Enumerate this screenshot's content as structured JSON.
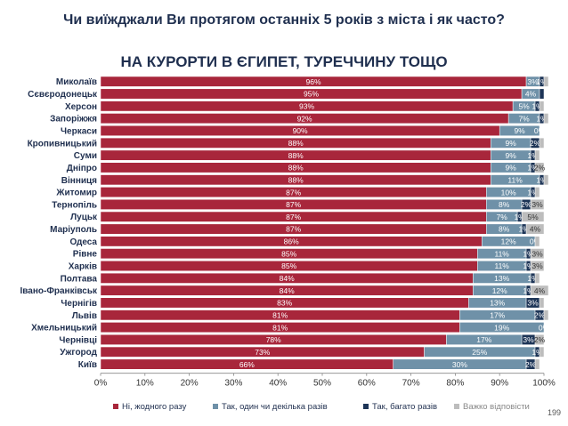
{
  "title": "Чи виїжджали Ви протягом останніх 5 років з міста і як часто?",
  "subtitle": "НА КУРОРТИ В ЄГИПЕТ, ТУРЕЧЧИНУ ТОЩО",
  "page_number": "199",
  "colors": {
    "no": "#a8263b",
    "once": "#6f91a8",
    "many": "#1d3557",
    "hard": "#bdbdbd",
    "title": "#1f2f4f"
  },
  "chart_data": {
    "type": "bar",
    "orientation": "horizontal",
    "stacked": true,
    "categories": [
      "Миколаїв",
      "Сєвєродонецьк",
      "Херсон",
      "Запоріжжя",
      "Черкаси",
      "Кропивницький",
      "Суми",
      "Дніпро",
      "Вінниця",
      "Житомир",
      "Тернопіль",
      "Луцьк",
      "Маріуполь",
      "Одеса",
      "Рівне",
      "Харків",
      "Полтава",
      "Івано-Франківськ",
      "Чернігів",
      "Львів",
      "Хмельницький",
      "Чернівці",
      "Ужгород",
      "Київ"
    ],
    "series": [
      {
        "name": "Ні, жодного разу",
        "color_key": "no",
        "values": [
          96,
          95,
          93,
          92,
          90,
          88,
          88,
          88,
          88,
          87,
          87,
          87,
          87,
          86,
          85,
          85,
          84,
          84,
          83,
          81,
          81,
          78,
          73,
          66
        ]
      },
      {
        "name": "Так, один чи декілька разів",
        "color_key": "once",
        "values": [
          3,
          4,
          5,
          7,
          9,
          9,
          9,
          9,
          11,
          10,
          8,
          7,
          8,
          12,
          11,
          11,
          13,
          12,
          13,
          17,
          19,
          17,
          25,
          30
        ]
      },
      {
        "name": "Так, багато разів",
        "color_key": "many",
        "values": [
          1,
          1,
          1,
          1,
          0,
          2,
          1,
          1,
          1,
          1,
          2,
          1,
          1,
          0,
          1,
          1,
          1,
          1,
          3,
          2,
          0,
          3,
          1,
          2
        ]
      },
      {
        "name": "Важко відповісти",
        "color_key": "hard",
        "values": [
          1,
          0,
          1,
          1,
          0,
          1,
          1,
          2,
          1,
          1,
          3,
          5,
          4,
          1,
          3,
          3,
          1,
          4,
          1,
          1,
          0,
          2,
          1,
          1
        ]
      }
    ],
    "value_labels": [
      [
        "96%",
        "3%",
        "1%",
        ""
      ],
      [
        "95%",
        "4%",
        "",
        ""
      ],
      [
        "93%",
        "5%",
        "1%",
        ""
      ],
      [
        "92%",
        "7%",
        "1%",
        ""
      ],
      [
        "90%",
        "9%",
        "0%",
        ""
      ],
      [
        "88%",
        "9%",
        "2%",
        ""
      ],
      [
        "88%",
        "9%",
        "1%",
        ""
      ],
      [
        "88%",
        "9%",
        "1%",
        "2%"
      ],
      [
        "88%",
        "11%",
        "1%",
        ""
      ],
      [
        "87%",
        "10%",
        "1%",
        ""
      ],
      [
        "87%",
        "8%",
        "2%",
        "3%"
      ],
      [
        "87%",
        "7%",
        "1%",
        "5%"
      ],
      [
        "87%",
        "8%",
        "1%",
        "4%"
      ],
      [
        "86%",
        "12%",
        "0%",
        ""
      ],
      [
        "85%",
        "11%",
        "1%",
        "3%"
      ],
      [
        "85%",
        "11%",
        "1%",
        "3%"
      ],
      [
        "84%",
        "13%",
        "1%",
        ""
      ],
      [
        "84%",
        "12%",
        "1%",
        "4%"
      ],
      [
        "83%",
        "13%",
        "3%",
        ""
      ],
      [
        "81%",
        "17%",
        "2%",
        ""
      ],
      [
        "81%",
        "19%",
        "0%",
        ""
      ],
      [
        "78%",
        "17%",
        "3%",
        "2%"
      ],
      [
        "73%",
        "25%",
        "1%",
        ""
      ],
      [
        "66%",
        "30%",
        "2%",
        ""
      ]
    ],
    "x_ticks": [
      "0%",
      "10%",
      "20%",
      "30%",
      "40%",
      "50%",
      "60%",
      "70%",
      "80%",
      "90%",
      "100%"
    ],
    "xlim": [
      0,
      100
    ],
    "legend_position": "bottom",
    "grid": false
  }
}
